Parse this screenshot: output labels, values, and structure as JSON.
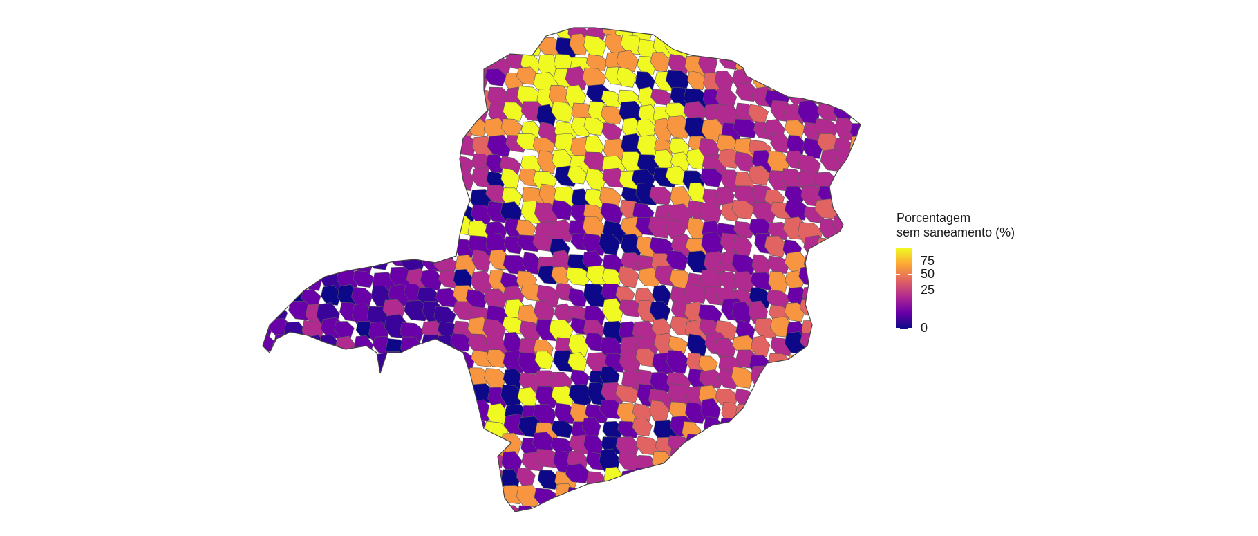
{
  "legend": {
    "title_line1": "Porcentagem",
    "title_line2": "sem saneamento (%)",
    "ticks": [
      {
        "label": "75",
        "value": 75
      },
      {
        "label": "50",
        "value": 50
      },
      {
        "label": "25",
        "value": 25
      },
      {
        "label": "0",
        "value": 0
      }
    ],
    "range": [
      0,
      100
    ],
    "palette": [
      "#0d0887",
      "#6a00a8",
      "#b12a90",
      "#e16462",
      "#fca636",
      "#f0f921"
    ]
  },
  "map": {
    "region": "Minas Gerais municipalities",
    "border_color": "#555555",
    "scale": "sqrt"
  }
}
